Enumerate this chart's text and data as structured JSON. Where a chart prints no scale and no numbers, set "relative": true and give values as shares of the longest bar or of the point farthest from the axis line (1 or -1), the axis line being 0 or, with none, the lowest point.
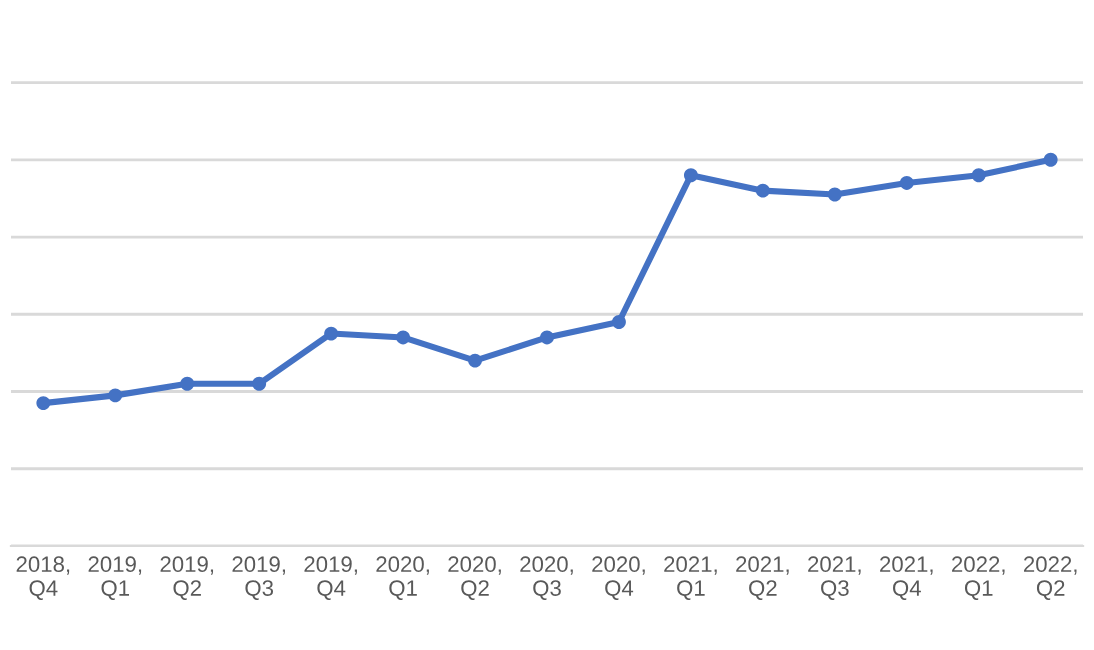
{
  "chart_data": {
    "type": "line",
    "relative": true,
    "grid": "y",
    "marker": "circle",
    "line_style": "solid",
    "categories": [
      "2018,\nQ4",
      "2019,\nQ1",
      "2019,\nQ2",
      "2019,\nQ3",
      "2019,\nQ4",
      "2020,\nQ1",
      "2020,\nQ2",
      "2020,\nQ3",
      "2020,\nQ4",
      "2021,\nQ1",
      "2021,\nQ2",
      "2021,\nQ3",
      "2021,\nQ4",
      "2022,\nQ1",
      "2022,\nQ2"
    ],
    "series": [
      {
        "color": "#4472c4",
        "values": [
          0.37,
          0.39,
          0.42,
          0.42,
          0.55,
          0.54,
          0.48,
          0.54,
          0.58,
          0.96,
          0.92,
          0.91,
          0.94,
          0.96,
          1.0
        ]
      }
    ]
  }
}
